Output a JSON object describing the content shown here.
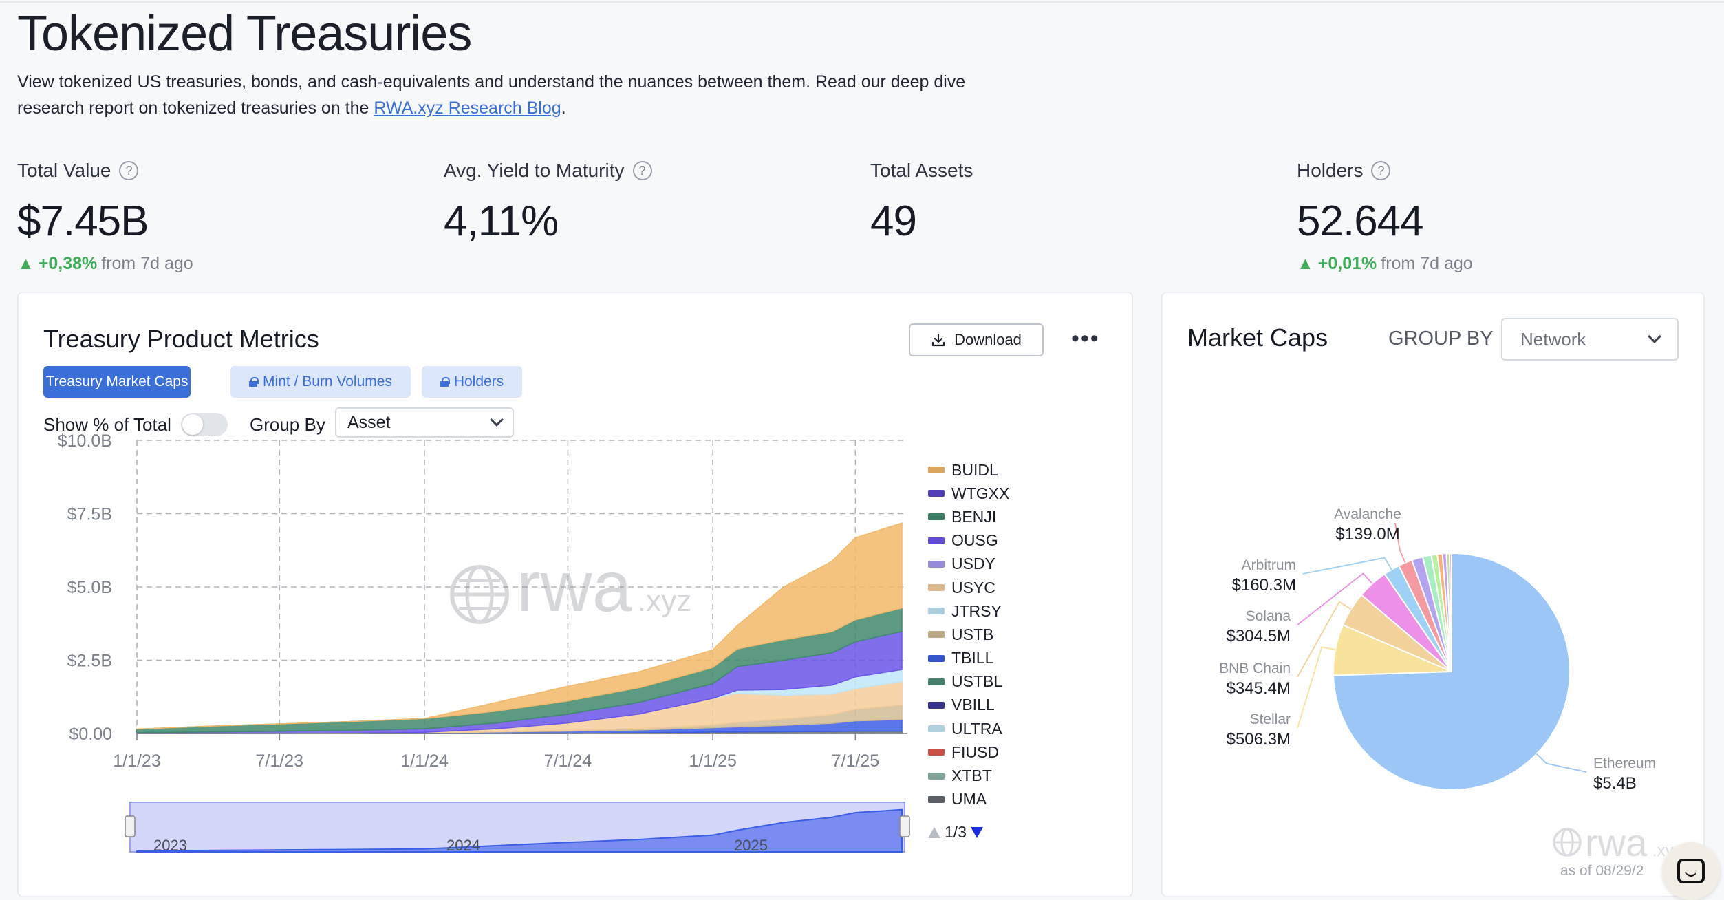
{
  "header": {
    "title": "Tokenized Treasuries",
    "description": "View tokenized US treasuries, bonds, and cash-equivalents and understand the nuances between them. Read our deep dive research report on tokenized treasuries on the",
    "link_text": "RWA.xyz Research Blog",
    "period": "."
  },
  "stats": [
    {
      "label": "Total Value",
      "value": "$7.45B",
      "change": "+0,38%",
      "change_suffix": "from 7d ago"
    },
    {
      "label": "Avg. Yield to Maturity",
      "value": "4,11%"
    },
    {
      "label": "Total Assets",
      "value": "49"
    },
    {
      "label": "Holders",
      "value": "52.644",
      "change": "+0,01%",
      "change_suffix": "from 7d ago"
    }
  ],
  "metrics_card": {
    "title": "Treasury Product Metrics",
    "download_label": "Download",
    "more_label": "•••",
    "tabs": [
      "Treasury Market Caps",
      "Mint / Burn Volumes",
      "Holders"
    ],
    "show_pct_label": "Show % of Total",
    "group_by_label": "Group By",
    "group_by_value": "Asset",
    "watermark": "rwa",
    "watermark_suffix": ".xyz",
    "navigator_years": [
      "2023",
      "2024",
      "2025"
    ],
    "pager": "1/3"
  },
  "market_caps_card": {
    "title": "Market Caps",
    "group_by_label": "GROUP BY",
    "group_by_value": "Network",
    "watermark": "rwa",
    "watermark_suffix": ".xyz",
    "as_of": "as of 08/29/2"
  },
  "chart_data": [
    {
      "type": "area",
      "stacked": true,
      "x_ticks": [
        "1/1/23",
        "7/1/23",
        "1/1/24",
        "7/1/24",
        "1/1/25",
        "7/1/25"
      ],
      "y_ticks": [
        "$0.00",
        "$2.5B",
        "$5.0B",
        "$7.5B",
        "$10.0B"
      ],
      "ylim": [
        0,
        10
      ],
      "grid": true,
      "legend_position": "right",
      "legend": [
        {
          "name": "BUIDL",
          "color": "#f2b96a"
        },
        {
          "name": "WTGXX",
          "color": "#5a47c8"
        },
        {
          "name": "BENJI",
          "color": "#3f8a6c"
        },
        {
          "name": "OUSG",
          "color": "#6a55e8"
        },
        {
          "name": "USDY",
          "color": "#a89af2"
        },
        {
          "name": "USYC",
          "color": "#f6cc9b"
        },
        {
          "name": "JTRSY",
          "color": "#bfe6f8"
        },
        {
          "name": "USTB",
          "color": "#d2bc94"
        },
        {
          "name": "TBILL",
          "color": "#3b5ee6"
        },
        {
          "name": "USTBL",
          "color": "#4f8d7a"
        },
        {
          "name": "VBILL",
          "color": "#3d3a9c"
        },
        {
          "name": "ULTRA",
          "color": "#c4e9f8"
        },
        {
          "name": "FIUSD",
          "color": "#e05a52"
        },
        {
          "name": "XTBT",
          "color": "#8fb8a8"
        },
        {
          "name": "UMA",
          "color": "#666b73"
        }
      ],
      "x": [
        "1/1/23",
        "4/1/23",
        "7/1/23",
        "10/1/23",
        "1/1/24",
        "4/1/24",
        "7/1/24",
        "10/1/24",
        "1/1/25",
        "2/1/25",
        "4/1/25",
        "6/1/25",
        "7/1/25",
        "8/29/25"
      ],
      "series": [
        {
          "name": "UMA",
          "values": [
            0.0,
            0.0,
            0.0,
            0.0,
            0.0,
            0.0,
            0.0,
            0.02,
            0.05,
            0.05,
            0.06,
            0.07,
            0.08,
            0.08
          ]
        },
        {
          "name": "TBILL",
          "values": [
            0.0,
            0.0,
            0.0,
            0.0,
            0.02,
            0.05,
            0.08,
            0.1,
            0.15,
            0.18,
            0.22,
            0.28,
            0.35,
            0.4
          ]
        },
        {
          "name": "USTB",
          "values": [
            0.0,
            0.0,
            0.0,
            0.0,
            0.0,
            0.01,
            0.03,
            0.05,
            0.1,
            0.15,
            0.22,
            0.3,
            0.4,
            0.5
          ]
        },
        {
          "name": "USYC",
          "values": [
            0.0,
            0.0,
            0.0,
            0.01,
            0.02,
            0.1,
            0.25,
            0.5,
            0.9,
            1.0,
            0.8,
            0.7,
            0.7,
            0.8
          ]
        },
        {
          "name": "JTRSY",
          "values": [
            0.0,
            0.0,
            0.0,
            0.0,
            0.0,
            0.0,
            0.0,
            0.0,
            0.0,
            0.1,
            0.2,
            0.3,
            0.4,
            0.4
          ]
        },
        {
          "name": "OUSG",
          "values": [
            0.03,
            0.05,
            0.08,
            0.1,
            0.12,
            0.2,
            0.3,
            0.4,
            0.5,
            0.8,
            1.0,
            1.1,
            1.2,
            1.3
          ]
        },
        {
          "name": "BENJI",
          "values": [
            0.12,
            0.2,
            0.25,
            0.3,
            0.35,
            0.4,
            0.45,
            0.5,
            0.55,
            0.6,
            0.7,
            0.72,
            0.75,
            0.8
          ]
        },
        {
          "name": "BUIDL",
          "values": [
            0.0,
            0.0,
            0.0,
            0.0,
            0.0,
            0.3,
            0.5,
            0.55,
            0.6,
            0.8,
            1.8,
            2.4,
            2.8,
            2.9
          ]
        }
      ]
    },
    {
      "type": "pie",
      "slices": [
        {
          "label": "Ethereum",
          "value": 5.4,
          "display": "$5.4B",
          "color": "#9cc6f5"
        },
        {
          "label": "Stellar",
          "value": 0.5063,
          "display": "$506.3M",
          "color": "#f9e29c"
        },
        {
          "label": "BNB Chain",
          "value": 0.3454,
          "display": "$345.4M",
          "color": "#f3d19a"
        },
        {
          "label": "Solana",
          "value": 0.3045,
          "display": "$304.5M",
          "color": "#ec90e8"
        },
        {
          "label": "Arbitrum",
          "value": 0.1603,
          "display": "$160.3M",
          "color": "#9fd0f5"
        },
        {
          "label": "Avalanche",
          "value": 0.139,
          "display": "$139.0M",
          "color": "#f49aa0"
        },
        {
          "label": "",
          "value": 0.11,
          "display": "",
          "color": "#b4a4f0"
        },
        {
          "label": "",
          "value": 0.085,
          "display": "",
          "color": "#a8ecc4"
        },
        {
          "label": "",
          "value": 0.06,
          "display": "",
          "color": "#b8f0a0"
        },
        {
          "label": "",
          "value": 0.05,
          "display": "",
          "color": "#f6b07a"
        },
        {
          "label": "",
          "value": 0.04,
          "display": "",
          "color": "#c2a0f0"
        },
        {
          "label": "",
          "value": 0.03,
          "display": "",
          "color": "#c8d8a8"
        },
        {
          "label": "",
          "value": 0.02,
          "display": "",
          "color": "#e8a8c8"
        }
      ]
    }
  ]
}
